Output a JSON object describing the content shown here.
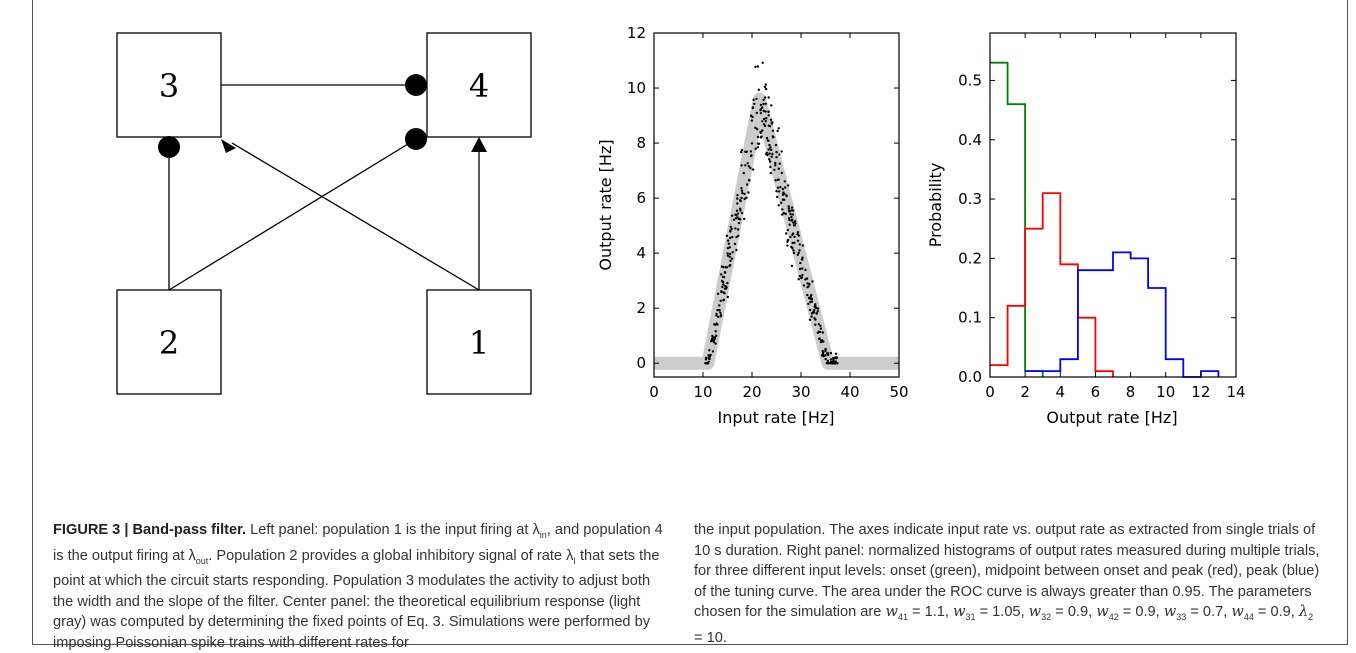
{
  "diagram": {
    "nodes": [
      {
        "id": "3",
        "label": "3"
      },
      {
        "id": "4",
        "label": "4"
      },
      {
        "id": "2",
        "label": "2"
      },
      {
        "id": "1",
        "label": "1"
      }
    ]
  },
  "chart_data": [
    {
      "type": "scatter",
      "title": "",
      "xlabel": "Input rate [Hz]",
      "ylabel": "Output rate [Hz]",
      "xlim": [
        0,
        50
      ],
      "ylim": [
        -0.5,
        12
      ],
      "xticks": [
        "0",
        "10",
        "20",
        "30",
        "40",
        "50"
      ],
      "yticks": [
        "0",
        "2",
        "4",
        "6",
        "8",
        "10",
        "12"
      ],
      "theory_curve": {
        "color": "#cccccc",
        "x": [
          0,
          11,
          21.5,
          35.5,
          50
        ],
        "y": [
          0,
          0,
          9.6,
          0,
          0
        ]
      },
      "scatter_color": "#000000"
    },
    {
      "type": "line",
      "title": "",
      "xlabel": "Output rate [Hz]",
      "ylabel": "Probability",
      "xlim": [
        0,
        14
      ],
      "ylim": [
        0,
        0.58
      ],
      "xticks": [
        "0",
        "2",
        "4",
        "6",
        "8",
        "10",
        "12",
        "14"
      ],
      "yticks": [
        "0.0",
        "0.1",
        "0.2",
        "0.3",
        "0.4",
        "0.5"
      ],
      "series": [
        {
          "color": "#008000",
          "bin_edges": [
            0,
            1,
            2,
            3
          ],
          "values": [
            0.53,
            0.46,
            0.01
          ]
        },
        {
          "color": "#ff0000",
          "bin_edges": [
            0,
            1,
            2,
            3,
            4,
            5,
            6,
            7
          ],
          "values": [
            0.02,
            0.12,
            0.25,
            0.31,
            0.19,
            0.1,
            0.01
          ]
        },
        {
          "color": "#0000ff",
          "bin_edges": [
            2,
            3,
            4,
            5,
            6,
            7,
            8,
            9,
            10,
            11,
            12,
            13
          ],
          "values": [
            0.01,
            0.01,
            0.03,
            0.18,
            0.18,
            0.21,
            0.2,
            0.15,
            0.03,
            0.0,
            0.01
          ]
        }
      ]
    }
  ],
  "caption": {
    "title": "FIGURE 3 | Band-pass filter.",
    "left": {
      "t1": " Left panel: population 1 is the input firing at λ",
      "s1": "in",
      "t2": ", and population 4 is the output firing at λ",
      "s2": "out",
      "t3": ". Population 2 provides a global inhibitory signal of rate λ",
      "s3": "I",
      "t4": " that sets the point at which the circuit starts responding. Population 3 modulates the activity to adjust both the width and the slope of the filter. Center panel: the theoretical equilibrium response (light gray) was computed by determining the fixed points of Eq. 3. Simulations were performed by imposing Poissonian spike trains with different rates for"
    },
    "right": {
      "text": "the input population. The axes indicate input rate vs. output rate as extracted from single trials of 10 s duration. Right panel: normalized histograms of output rates measured during multiple trials, for three different input levels: onset (green), midpoint between onset and peak (red), peak (blue) of the tuning curve. The area under the ROC curve is always greater than 0.95. The parameters chosen for the simulation are ",
      "params": [
        {
          "w": "w",
          "sub": "41",
          "val": "1.1"
        },
        {
          "w": "w",
          "sub": "31",
          "val": "1.05"
        },
        {
          "w": "w",
          "sub": "32",
          "val": "0.9"
        },
        {
          "w": "w",
          "sub": "42",
          "val": "0.9"
        },
        {
          "w": "w",
          "sub": "33",
          "val": "0.7"
        },
        {
          "w": "w",
          "sub": "44",
          "val": "0.9"
        },
        {
          "w": "λ",
          "sub": "2",
          "val": "10"
        }
      ],
      "end": "."
    }
  }
}
